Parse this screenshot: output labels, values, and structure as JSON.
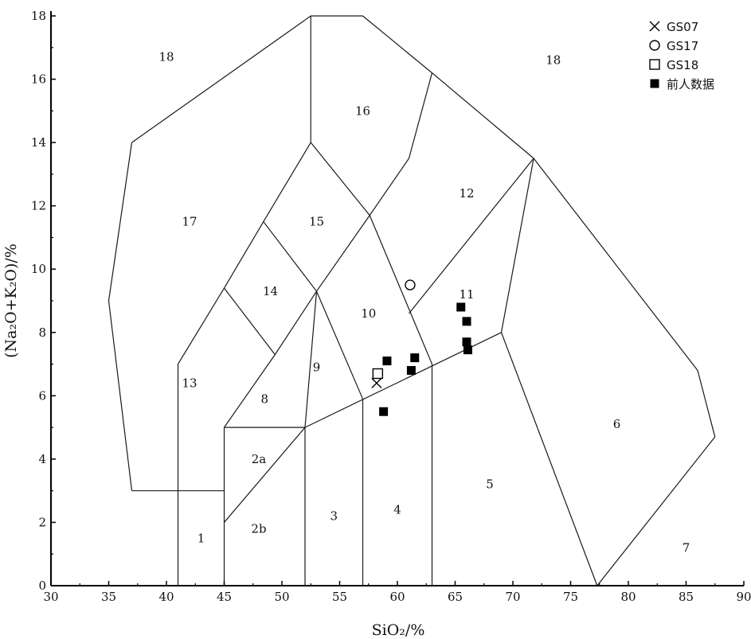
{
  "chart_data": {
    "type": "scatter",
    "title": "",
    "xlabel": "SiO₂/%",
    "ylabel": "(Na₂O+K₂O)/%",
    "xlim": [
      30,
      90
    ],
    "ylim": [
      0,
      18
    ],
    "x_ticks": [
      30,
      35,
      40,
      45,
      50,
      55,
      60,
      65,
      70,
      75,
      80,
      85,
      90
    ],
    "y_ticks": [
      0,
      2,
      4,
      6,
      8,
      10,
      12,
      14,
      16,
      18
    ],
    "grid": false,
    "legend_position": "top-right",
    "field_boundaries": [
      [
        [
          41,
          0
        ],
        [
          41,
          7
        ]
      ],
      [
        [
          45,
          0
        ],
        [
          45,
          5
        ]
      ],
      [
        [
          52,
          0
        ],
        [
          52,
          5
        ]
      ],
      [
        [
          57,
          0
        ],
        [
          57,
          5.9
        ]
      ],
      [
        [
          63,
          0
        ],
        [
          63,
          7
        ]
      ],
      [
        [
          37,
          3
        ],
        [
          45,
          3
        ]
      ],
      [
        [
          45,
          5
        ],
        [
          52,
          5
        ]
      ],
      [
        [
          45,
          2
        ],
        [
          52,
          5
        ]
      ],
      [
        [
          52,
          5
        ],
        [
          69,
          8
        ]
      ],
      [
        [
          69,
          8
        ],
        [
          77.3,
          0
        ]
      ],
      [
        [
          41,
          7
        ],
        [
          45,
          9.4
        ]
      ],
      [
        [
          45,
          9.4
        ],
        [
          49.4,
          7.3
        ]
      ],
      [
        [
          49.4,
          7.3
        ],
        [
          45,
          5
        ]
      ],
      [
        [
          49.4,
          7.3
        ],
        [
          53,
          9.3
        ]
      ],
      [
        [
          53,
          9.3
        ],
        [
          57,
          5.9
        ]
      ],
      [
        [
          53,
          9.3
        ],
        [
          52,
          5
        ]
      ],
      [
        [
          45,
          9.4
        ],
        [
          48.4,
          11.5
        ]
      ],
      [
        [
          48.4,
          11.5
        ],
        [
          53,
          9.3
        ]
      ],
      [
        [
          53,
          9.3
        ],
        [
          57.6,
          11.7
        ]
      ],
      [
        [
          57.6,
          11.7
        ],
        [
          63,
          7
        ]
      ],
      [
        [
          48.4,
          11.5
        ],
        [
          52.5,
          14
        ]
      ],
      [
        [
          52.5,
          14
        ],
        [
          57.6,
          11.7
        ]
      ],
      [
        [
          52.5,
          14
        ],
        [
          52.5,
          18
        ]
      ],
      [
        [
          57.6,
          11.7
        ],
        [
          61,
          13.5
        ]
      ],
      [
        [
          61,
          13.5
        ],
        [
          63,
          16.2
        ]
      ],
      [
        [
          63,
          16.2
        ],
        [
          71.8,
          13.5
        ]
      ],
      [
        [
          71.8,
          13.5
        ],
        [
          61,
          8.6
        ]
      ],
      [
        [
          71.8,
          13.5
        ],
        [
          69,
          8
        ]
      ],
      [
        [
          71.8,
          13.5
        ],
        [
          86,
          6.8
        ]
      ],
      [
        [
          86,
          6.8
        ],
        [
          87.5,
          4.7
        ]
      ],
      [
        [
          87.5,
          4.7
        ],
        [
          77.3,
          0
        ]
      ],
      [
        [
          57,
          18
        ],
        [
          63,
          16.2
        ]
      ],
      [
        [
          52.5,
          18
        ],
        [
          57,
          18
        ]
      ],
      [
        [
          52.5,
          18
        ],
        [
          37,
          14
        ]
      ],
      [
        [
          37,
          14
        ],
        [
          35,
          9
        ]
      ],
      [
        [
          35,
          9
        ],
        [
          37,
          3
        ]
      ]
    ],
    "field_labels": [
      {
        "text": "1",
        "x": 43,
        "y": 1.5
      },
      {
        "text": "2a",
        "x": 48,
        "y": 4
      },
      {
        "text": "2b",
        "x": 48,
        "y": 1.8
      },
      {
        "text": "3",
        "x": 54.5,
        "y": 2.2
      },
      {
        "text": "4",
        "x": 60,
        "y": 2.4
      },
      {
        "text": "5",
        "x": 68,
        "y": 3.2
      },
      {
        "text": "6",
        "x": 79,
        "y": 5.1
      },
      {
        "text": "7",
        "x": 85,
        "y": 1.2
      },
      {
        "text": "8",
        "x": 48.5,
        "y": 5.9
      },
      {
        "text": "9",
        "x": 53,
        "y": 6.9
      },
      {
        "text": "10",
        "x": 57.5,
        "y": 8.6
      },
      {
        "text": "11",
        "x": 66,
        "y": 9.2
      },
      {
        "text": "12",
        "x": 66,
        "y": 12.4
      },
      {
        "text": "13",
        "x": 42,
        "y": 6.4
      },
      {
        "text": "14",
        "x": 49,
        "y": 9.3
      },
      {
        "text": "15",
        "x": 53,
        "y": 11.5
      },
      {
        "text": "16",
        "x": 57,
        "y": 15
      },
      {
        "text": "17",
        "x": 42,
        "y": 11.5
      },
      {
        "text": "18",
        "x": 40,
        "y": 16.7
      },
      {
        "text": "18",
        "x": 73.5,
        "y": 16.6
      }
    ],
    "series": [
      {
        "name": "GS07",
        "marker": "cross",
        "points": [
          [
            58.2,
            6.4
          ]
        ]
      },
      {
        "name": "GS17",
        "marker": "open-circle",
        "points": [
          [
            61.1,
            9.5
          ]
        ]
      },
      {
        "name": "GS18",
        "marker": "open-square",
        "points": [
          [
            58.3,
            6.7
          ]
        ]
      },
      {
        "name": "前人数据",
        "marker": "filled-square",
        "points": [
          [
            58.8,
            5.5
          ],
          [
            59.1,
            7.1
          ],
          [
            61.2,
            6.8
          ],
          [
            61.5,
            7.2
          ],
          [
            65.5,
            8.8
          ],
          [
            66.0,
            8.35
          ],
          [
            66.0,
            7.7
          ],
          [
            66.1,
            7.45
          ]
        ]
      }
    ]
  }
}
